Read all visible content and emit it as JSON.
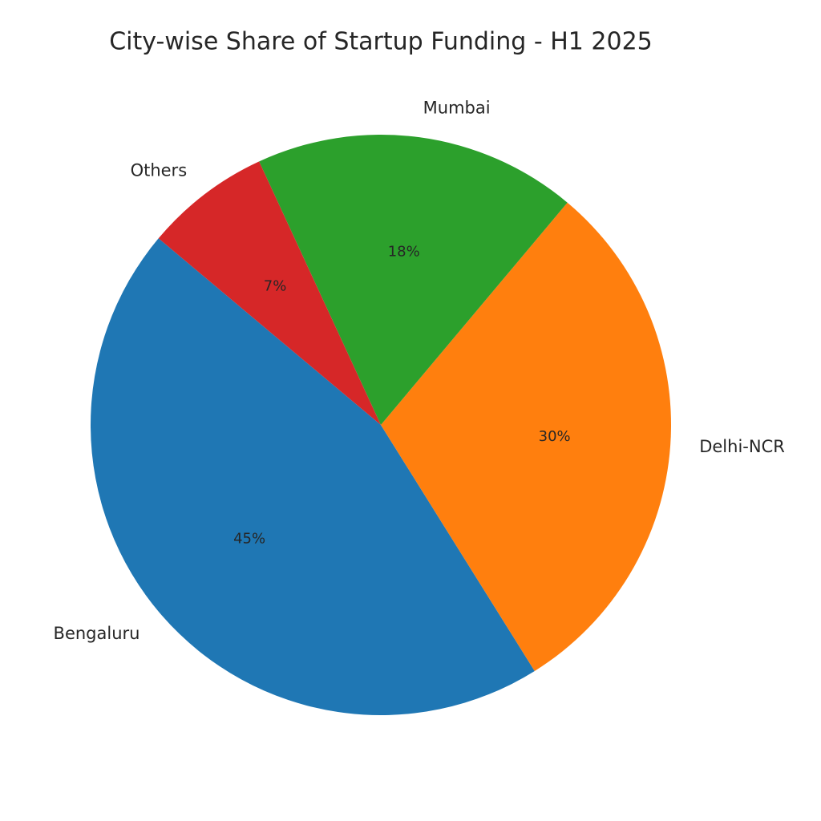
{
  "chart_data": {
    "type": "pie",
    "title": "City-wise Share of Startup Funding - H1 2025",
    "categories": [
      "Bengaluru",
      "Delhi-NCR",
      "Mumbai",
      "Others"
    ],
    "values": [
      45,
      30,
      18,
      7
    ],
    "value_labels": [
      "45%",
      "30%",
      "18%",
      "7%"
    ],
    "colors": [
      "#1f77b4",
      "#ff7f0e",
      "#2ca02c",
      "#d62728"
    ],
    "start_angle": 140
  }
}
